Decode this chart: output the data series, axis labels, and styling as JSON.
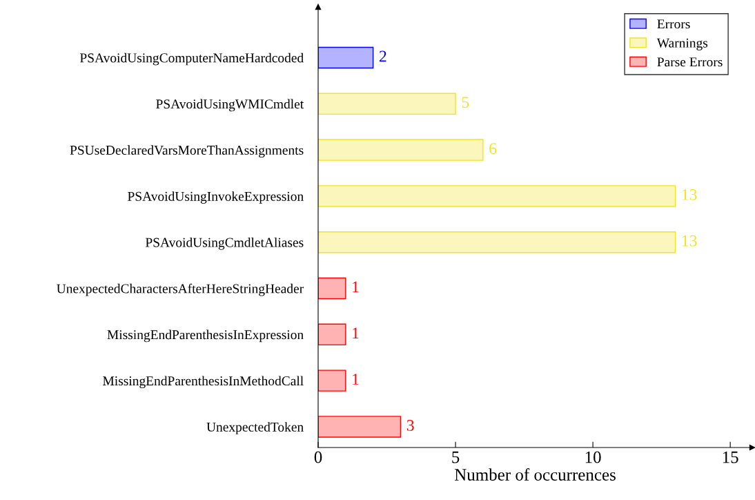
{
  "chart_data": {
    "type": "bar",
    "orientation": "horizontal",
    "xlabel": "Number of occurrences",
    "categories": [
      "PSAvoidUsingComputerNameHardcoded",
      "PSAvoidUsingWMICmdlet",
      "PSUseDeclaredVarsMoreThanAssignments",
      "PSAvoidUsingInvokeExpression",
      "PSAvoidUsingCmdletAliases",
      "UnexpectedCharactersAfterHereStringHeader",
      "MissingEndParenthesisInExpression",
      "MissingEndParenthesisInMethodCall",
      "UnexpectedToken"
    ],
    "series": [
      {
        "name": "Errors",
        "color": "#b3b3ff",
        "values": [
          2,
          null,
          null,
          null,
          null,
          null,
          null,
          null,
          null
        ]
      },
      {
        "name": "Warnings",
        "color": "#fbf7bc",
        "values": [
          null,
          5,
          6,
          13,
          13,
          null,
          null,
          null,
          null
        ]
      },
      {
        "name": "Parse Errors",
        "color": "#ffb3b3",
        "values": [
          null,
          null,
          null,
          null,
          null,
          1,
          1,
          1,
          3
        ]
      }
    ],
    "xlim": [
      0,
      15.8
    ],
    "xticks": [
      0,
      5,
      10,
      15
    ],
    "data_labels": true,
    "legend": "top right",
    "grid": false
  }
}
